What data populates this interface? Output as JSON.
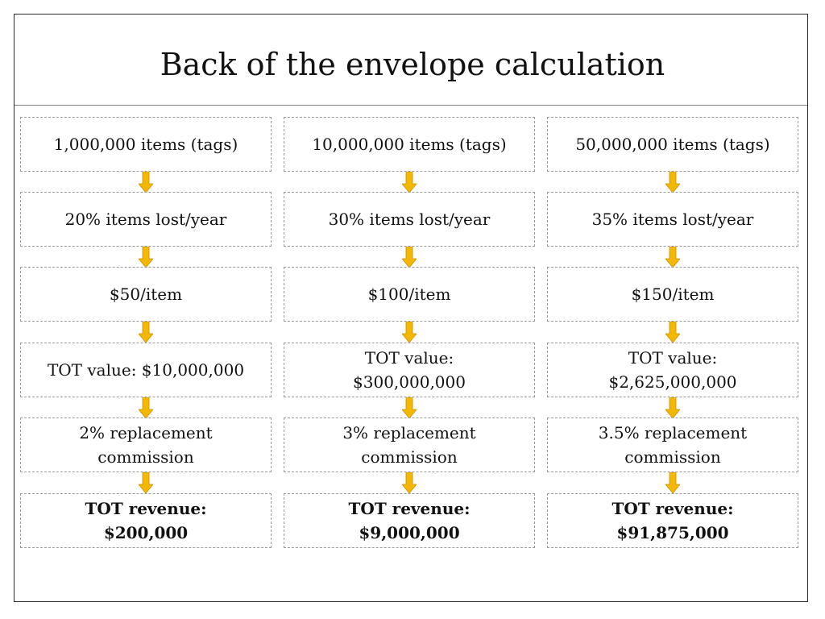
{
  "title": "Back of the envelope calculation",
  "arrow_color": "#f5b800",
  "columns": [
    {
      "boxes": [
        [
          "1,000,000 items (tags)"
        ],
        [
          "20% items lost/year"
        ],
        [
          "$50/item"
        ],
        [
          "TOT value: $10,000,000"
        ],
        [
          "2% replacement",
          "commission"
        ],
        [
          "TOT revenue:",
          "$200,000"
        ]
      ]
    },
    {
      "boxes": [
        [
          "10,000,000 items (tags)"
        ],
        [
          "30% items lost/year"
        ],
        [
          "$100/item"
        ],
        [
          "TOT value:",
          "$300,000,000"
        ],
        [
          "3% replacement",
          "commission"
        ],
        [
          "TOT revenue:",
          "$9,000,000"
        ]
      ]
    },
    {
      "boxes": [
        [
          "50,000,000 items (tags)"
        ],
        [
          "35% items lost/year"
        ],
        [
          "$150/item"
        ],
        [
          "TOT value:",
          "$2,625,000,000"
        ],
        [
          "3.5% replacement",
          "commission"
        ],
        [
          "TOT revenue:",
          "$91,875,000"
        ]
      ]
    }
  ]
}
